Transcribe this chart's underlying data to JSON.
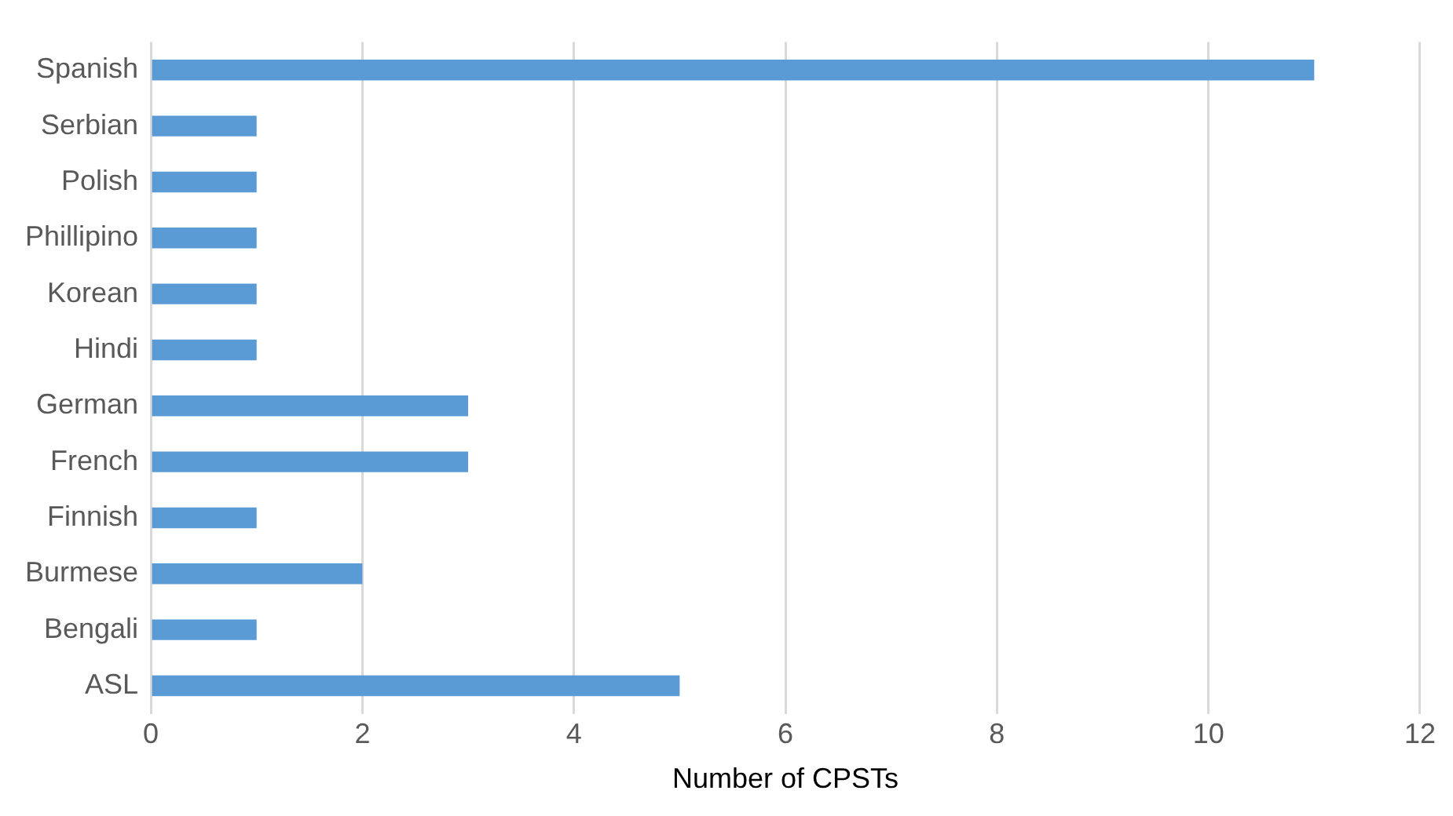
{
  "chart_data": {
    "type": "bar",
    "orientation": "horizontal",
    "categories": [
      "Spanish",
      "Serbian",
      "Polish",
      "Phillipino",
      "Korean",
      "Hindi",
      "German",
      "French",
      "Finnish",
      "Burmese",
      "Bengali",
      "ASL"
    ],
    "values": [
      11,
      1,
      1,
      1,
      1,
      1,
      3,
      3,
      1,
      2,
      1,
      5
    ],
    "color": "#5b9bd5",
    "xlim": [
      0,
      12
    ],
    "xticks": [
      0,
      2,
      4,
      6,
      8,
      10,
      12
    ],
    "grid": "x",
    "xlabel": "Number of CPSTs",
    "legend": false
  }
}
